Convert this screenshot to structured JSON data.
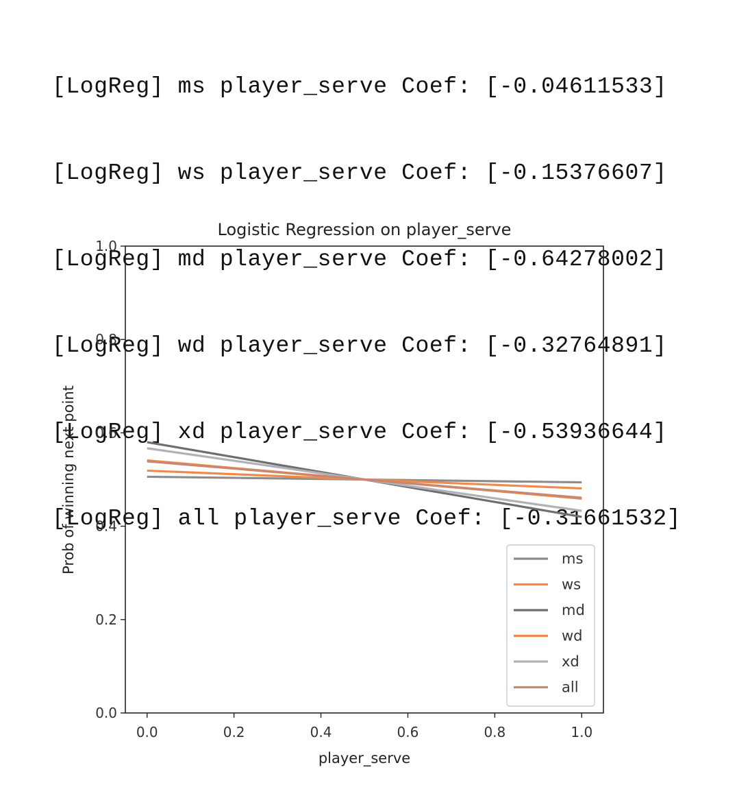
{
  "console": {
    "lines": [
      "[LogReg] ms player_serve Coef: [-0.04611533]",
      "[LogReg] ws player_serve Coef: [-0.15376607]",
      "[LogReg] md player_serve Coef: [-0.64278002]",
      "[LogReg] wd player_serve Coef: [-0.32764891]",
      "[LogReg] xd player_serve Coef: [-0.53936644]",
      "[LogReg] all player_serve Coef: [-0.31661532]"
    ]
  },
  "chart_data": {
    "type": "line",
    "title": "Logistic Regression on player_serve",
    "xlabel": "player_serve",
    "ylabel": "Prob of winning next point",
    "xlim": [
      -0.05,
      1.05
    ],
    "ylim": [
      0.0,
      1.0
    ],
    "xticks": [
      "0.0",
      "0.2",
      "0.4",
      "0.6",
      "0.8",
      "1.0"
    ],
    "yticks": [
      "0.0",
      "0.2",
      "0.4",
      "0.6",
      "0.8",
      "1.0"
    ],
    "grid": false,
    "legend_position": "lower right",
    "x": [
      0.0,
      1.0
    ],
    "series": [
      {
        "name": "ms",
        "color": "#8c8c8c",
        "values": [
          0.506,
          0.494
        ]
      },
      {
        "name": "ws",
        "color": "#f08a4b",
        "values": [
          0.519,
          0.481
        ]
      },
      {
        "name": "md",
        "color": "#6e6e6e",
        "values": [
          0.58,
          0.42
        ]
      },
      {
        "name": "wd",
        "color": "#f08a4b",
        "values": [
          0.541,
          0.459
        ]
      },
      {
        "name": "xd",
        "color": "#b0b0b8",
        "values": [
          0.567,
          0.433
        ]
      },
      {
        "name": "all",
        "color": "#c88770",
        "values": [
          0.539,
          0.461
        ]
      }
    ]
  }
}
